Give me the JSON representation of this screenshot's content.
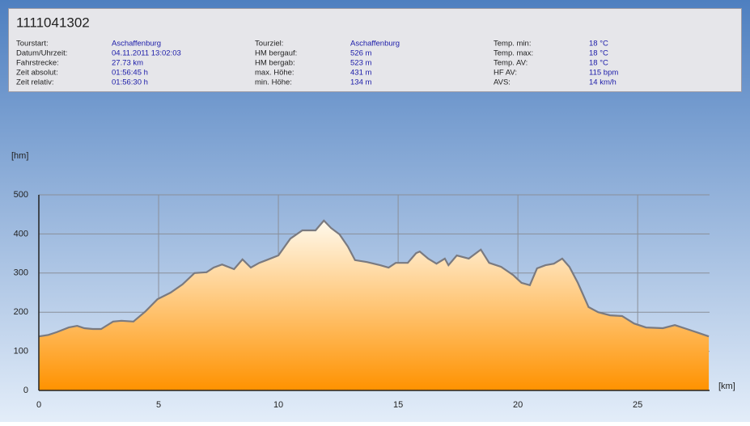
{
  "header": {
    "title": "1111041302",
    "fields": [
      {
        "label": "Tourstart:",
        "value": "Aschaffenburg"
      },
      {
        "label": "Datum/Uhrzeit:",
        "value": "04.11.2011 13:02:03"
      },
      {
        "label": "Fahrstrecke:",
        "value": "27.73 km"
      },
      {
        "label": "Zeit absolut:",
        "value": "01:56:45 h"
      },
      {
        "label": "Zeit relativ:",
        "value": "01:56:30 h"
      },
      {
        "label": "Tourziel:",
        "value": "Aschaffenburg"
      },
      {
        "label": "HM bergauf:",
        "value": "526 m"
      },
      {
        "label": "HM bergab:",
        "value": "523 m"
      },
      {
        "label": "max. Höhe:",
        "value": "431 m"
      },
      {
        "label": "min. Höhe:",
        "value": "134 m"
      },
      {
        "label": "Temp. min:",
        "value": "18 °C"
      },
      {
        "label": "Temp. max:",
        "value": "18 °C"
      },
      {
        "label": "Temp. AV:",
        "value": "18 °C"
      },
      {
        "label": "HF AV:",
        "value": "115 bpm"
      },
      {
        "label": "AVS:",
        "value": "14 km/h"
      }
    ]
  },
  "chart_data": {
    "type": "area",
    "x_label": "[km]",
    "y_label": "[hm]",
    "color": "#ff9200",
    "x": [
      0,
      0.4,
      0.75,
      1.25,
      1.6,
      1.9,
      2.25,
      2.6,
      3.1,
      3.45,
      3.95,
      4.45,
      4.95,
      5.5,
      6.0,
      6.5,
      7.0,
      7.3,
      7.65,
      8.15,
      8.5,
      8.85,
      9.2,
      9.5,
      10.0,
      10.5,
      11.0,
      11.55,
      11.9,
      12.2,
      12.55,
      12.9,
      13.2,
      13.7,
      14.25,
      14.6,
      14.9,
      15.4,
      15.75,
      15.9,
      16.25,
      16.6,
      16.95,
      17.1,
      17.45,
      17.95,
      18.3,
      18.45,
      18.8,
      19.3,
      19.8,
      20.15,
      20.5,
      20.8,
      21.15,
      21.5,
      21.85,
      22.15,
      22.5,
      22.95,
      23.35,
      23.85,
      24.35,
      24.85,
      25.35,
      26.05,
      26.55,
      27.05,
      27.55,
      27.97
    ],
    "values": [
      138,
      142,
      149,
      161,
      165,
      159,
      157,
      157,
      176,
      178,
      176,
      202,
      233,
      250,
      271,
      300,
      302,
      314,
      322,
      310,
      335,
      314,
      326,
      333,
      345,
      388,
      409,
      409,
      434,
      415,
      399,
      368,
      333,
      328,
      320,
      314,
      326,
      326,
      351,
      355,
      337,
      324,
      337,
      320,
      345,
      337,
      353,
      360,
      326,
      316,
      295,
      275,
      269,
      312,
      320,
      324,
      337,
      316,
      275,
      213,
      200,
      192,
      190,
      171,
      161,
      159,
      167,
      157,
      147,
      138
    ],
    "xlim": [
      0,
      28
    ],
    "xticks": [
      0,
      5,
      10,
      15,
      20,
      25
    ],
    "ylim": [
      0,
      500
    ],
    "yticks": [
      0,
      100,
      200,
      300,
      400,
      500
    ],
    "grid": true
  }
}
